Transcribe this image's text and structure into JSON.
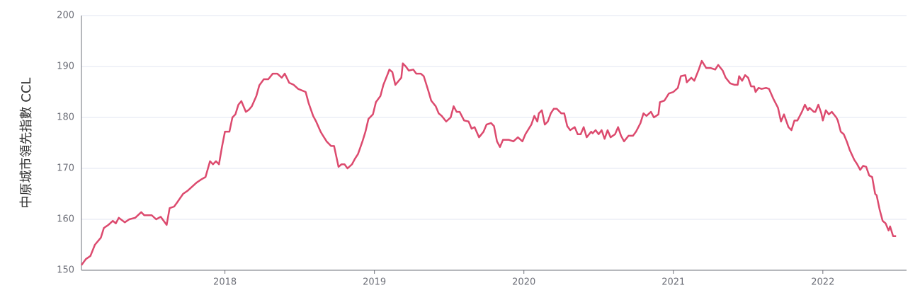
{
  "chart_data": {
    "type": "line",
    "y_label": "中原城市領先指數 CCL",
    "x": [
      2017.04,
      2017.07,
      2017.1,
      2017.13,
      2017.17,
      2017.19,
      2017.22,
      2017.25,
      2017.27,
      2017.29,
      2017.33,
      2017.36,
      2017.4,
      2017.44,
      2017.46,
      2017.51,
      2017.54,
      2017.57,
      2017.61,
      2017.63,
      2017.66,
      2017.68,
      2017.72,
      2017.75,
      2017.78,
      2017.81,
      2017.84,
      2017.87,
      2017.9,
      2017.92,
      2017.94,
      2017.96,
      2017.98,
      2018.0,
      2018.03,
      2018.05,
      2018.07,
      2018.09,
      2018.11,
      2018.14,
      2018.16,
      2018.18,
      2018.21,
      2018.23,
      2018.26,
      2018.29,
      2018.32,
      2018.35,
      2018.38,
      2018.4,
      2018.43,
      2018.46,
      2018.49,
      2018.54,
      2018.56,
      2018.59,
      2018.61,
      2018.64,
      2018.65,
      2018.68,
      2018.71,
      2018.73,
      2018.76,
      2018.78,
      2018.8,
      2018.82,
      2018.85,
      2018.87,
      2018.89,
      2018.92,
      2018.94,
      2018.96,
      2018.99,
      2019.01,
      2019.04,
      2019.06,
      2019.09,
      2019.1,
      2019.12,
      2019.14,
      2019.18,
      2019.19,
      2019.21,
      2019.23,
      2019.26,
      2019.28,
      2019.31,
      2019.33,
      2019.36,
      2019.38,
      2019.41,
      2019.43,
      2019.45,
      2019.48,
      2019.51,
      2019.53,
      2019.55,
      2019.57,
      2019.6,
      2019.63,
      2019.65,
      2019.67,
      2019.7,
      2019.73,
      2019.75,
      2019.78,
      2019.8,
      2019.82,
      2019.84,
      2019.86,
      2019.9,
      2019.93,
      2019.96,
      2019.99,
      2020.01,
      2020.05,
      2020.07,
      2020.09,
      2020.1,
      2020.12,
      2020.14,
      2020.16,
      2020.18,
      2020.2,
      2020.22,
      2020.25,
      2020.27,
      2020.29,
      2020.31,
      2020.34,
      2020.36,
      2020.38,
      2020.4,
      2020.42,
      2020.45,
      2020.46,
      2020.48,
      2020.5,
      2020.52,
      2020.54,
      2020.56,
      2020.58,
      2020.61,
      2020.63,
      2020.65,
      2020.67,
      2020.7,
      2020.73,
      2020.75,
      2020.78,
      2020.8,
      2020.82,
      2020.85,
      2020.87,
      2020.9,
      2020.91,
      2020.94,
      2020.97,
      2021.0,
      2021.03,
      2021.05,
      2021.08,
      2021.09,
      2021.12,
      2021.14,
      2021.17,
      2021.19,
      2021.22,
      2021.25,
      2021.28,
      2021.3,
      2021.33,
      2021.35,
      2021.38,
      2021.41,
      2021.43,
      2021.44,
      2021.46,
      2021.48,
      2021.5,
      2021.52,
      2021.54,
      2021.55,
      2021.57,
      2021.59,
      2021.62,
      2021.64,
      2021.67,
      2021.7,
      2021.72,
      2021.74,
      2021.77,
      2021.79,
      2021.81,
      2021.83,
      2021.86,
      2021.88,
      2021.9,
      2021.91,
      2021.94,
      2021.95,
      2021.97,
      2021.99,
      2022.0,
      2022.02,
      2022.04,
      2022.06,
      2022.09,
      2022.1,
      2022.12,
      2022.14,
      2022.16,
      2022.18,
      2022.21,
      2022.23,
      2022.25,
      2022.27,
      2022.29,
      2022.31,
      2022.33,
      2022.35,
      2022.36,
      2022.38,
      2022.4,
      2022.42,
      2022.44,
      2022.45,
      2022.47,
      2022.49
    ],
    "series": [
      {
        "color": "#dc4a6e",
        "values": [
          151.0,
          152.2,
          152.8,
          155,
          156.4,
          158.3,
          158.9,
          159.7,
          159.2,
          160.3,
          159.4,
          160,
          160.3,
          161.4,
          160.8,
          160.8,
          160,
          160.5,
          158.9,
          162.2,
          162.5,
          163.3,
          165,
          165.6,
          166.4,
          167.2,
          167.8,
          168.3,
          171.4,
          170.8,
          171.4,
          170.8,
          174.2,
          177.2,
          177.2,
          180,
          180.6,
          182.5,
          183.2,
          181.1,
          181.5,
          182.2,
          184.2,
          186.3,
          187.5,
          187.5,
          188.6,
          188.6,
          187.8,
          188.6,
          186.8,
          186.4,
          185.6,
          185,
          182.8,
          180.3,
          179.2,
          177.2,
          176.7,
          175.3,
          174.4,
          174.4,
          170.3,
          170.8,
          170.8,
          170,
          170.8,
          171.9,
          172.8,
          175.3,
          177.2,
          179.7,
          180.6,
          183,
          184.2,
          186.4,
          188.6,
          189.4,
          188.9,
          186.4,
          187.8,
          190.6,
          190,
          189.2,
          189.4,
          188.6,
          188.6,
          188.1,
          185.3,
          183.3,
          182.2,
          180.8,
          180.3,
          179.2,
          180,
          182.2,
          181.1,
          181.1,
          179.4,
          179.2,
          177.8,
          178.1,
          176.1,
          177.2,
          178.6,
          178.9,
          178.3,
          175.3,
          174.2,
          175.6,
          175.6,
          175.3,
          176.1,
          175.3,
          176.7,
          178.6,
          180.3,
          179.2,
          180.8,
          181.4,
          178.6,
          179.2,
          180.8,
          181.7,
          181.7,
          180.8,
          180.8,
          178.3,
          177.5,
          178.1,
          176.7,
          176.7,
          178.1,
          176.1,
          177.2,
          176.9,
          177.5,
          176.7,
          177.5,
          175.8,
          177.5,
          176.1,
          176.7,
          178.1,
          176.4,
          175.3,
          176.4,
          176.4,
          177.2,
          178.9,
          180.8,
          180.3,
          181.1,
          180,
          180.6,
          183,
          183.3,
          184.7,
          185,
          185.8,
          188.1,
          188.3,
          186.9,
          187.8,
          187.2,
          189.4,
          191.1,
          189.7,
          189.7,
          189.4,
          190.3,
          189.2,
          187.8,
          186.7,
          186.4,
          186.4,
          188.1,
          187.2,
          188.3,
          187.8,
          186.1,
          186.1,
          185,
          185.8,
          185.6,
          185.8,
          185.6,
          183.6,
          181.9,
          179.2,
          180.6,
          178.1,
          177.5,
          179.4,
          179.4,
          181.1,
          182.5,
          181.4,
          181.9,
          181.1,
          181.1,
          182.5,
          180.8,
          179.4,
          181.4,
          180.6,
          181.1,
          180,
          179.4,
          177.2,
          176.7,
          175.3,
          173.6,
          171.7,
          170.8,
          169.7,
          170.5,
          170.3,
          168.6,
          168.3,
          165,
          164.7,
          161.9,
          159.7,
          159.2,
          157.8,
          158.6,
          156.7,
          156.7
        ]
      }
    ],
    "xlim": [
      2017.04,
      2022.56
    ],
    "xticks": [
      2018,
      2019,
      2020,
      2021,
      2022
    ],
    "ylim": [
      150,
      200
    ],
    "yticks": [
      150,
      160,
      170,
      180,
      190,
      200
    ],
    "grid": true
  }
}
